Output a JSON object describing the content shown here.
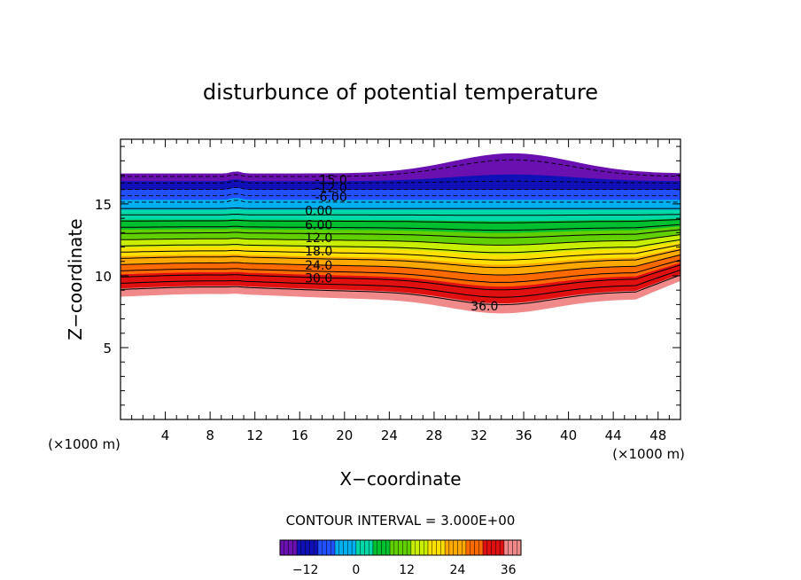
{
  "chart_data": {
    "type": "contour",
    "title": "disturbunce of potential temperature",
    "xlabel": "X−coordinate",
    "ylabel": "Z−coordinate",
    "x_unit_label": "(×1000 m)",
    "y_unit_label": "(×1000 m)",
    "xlim": [
      0,
      50
    ],
    "ylim": [
      0,
      19.5
    ],
    "x_ticks": [
      4,
      8,
      12,
      16,
      20,
      24,
      28,
      32,
      36,
      40,
      44,
      48
    ],
    "y_ticks": [
      5,
      10,
      15
    ],
    "contour_interval_label": "CONTOUR INTERVAL = 3.000E+00",
    "contour_interval": 3.0,
    "levels": [
      -15,
      -12,
      -9,
      -6,
      -3,
      0,
      3,
      6,
      9,
      12,
      15,
      18,
      21,
      24,
      27,
      30,
      33,
      36,
      39
    ],
    "contour_labels": [
      {
        "text": "-15.0",
        "x": 18.8,
        "z": 16.75
      },
      {
        "text": "-12.0",
        "x": 18.8,
        "z": 16.2
      },
      {
        "text": "-6.00",
        "x": 18.8,
        "z": 15.55
      },
      {
        "text": "0.00",
        "x": 17.7,
        "z": 14.6
      },
      {
        "text": "6.00",
        "x": 17.7,
        "z": 13.6
      },
      {
        "text": "12.0",
        "x": 17.7,
        "z": 12.7
      },
      {
        "text": "18.0",
        "x": 17.7,
        "z": 11.8
      },
      {
        "text": "24.0",
        "x": 17.7,
        "z": 10.8
      },
      {
        "text": "30.0",
        "x": 17.7,
        "z": 9.9
      },
      {
        "text": "36.0",
        "x": 32.5,
        "z": 7.95
      }
    ],
    "field_layers": [
      {
        "value": 38,
        "color": "#f08a8a",
        "bottom_z": 8.4,
        "top_z": 9.0
      },
      {
        "value": 34,
        "color": "#e01010",
        "bottom_z": 9.0,
        "top_z": 10.0
      },
      {
        "value": 28,
        "color": "#ff6a00",
        "bottom_z": 10.0,
        "top_z": 10.7
      },
      {
        "value": 24,
        "color": "#ffa800",
        "bottom_z": 10.7,
        "top_z": 11.3
      },
      {
        "value": 20,
        "color": "#ffe000",
        "bottom_z": 11.3,
        "top_z": 11.9
      },
      {
        "value": 17,
        "color": "#c8ee00",
        "bottom_z": 11.9,
        "top_z": 12.5
      },
      {
        "value": 12,
        "color": "#60d000",
        "bottom_z": 12.5,
        "top_z": 13.2
      },
      {
        "value": 7,
        "color": "#00c030",
        "bottom_z": 13.2,
        "top_z": 13.9
      },
      {
        "value": 2,
        "color": "#00d8a8",
        "bottom_z": 13.9,
        "top_z": 14.6
      },
      {
        "value": -4,
        "color": "#00b0f0",
        "bottom_z": 14.6,
        "top_z": 15.3
      },
      {
        "value": -9,
        "color": "#2050ff",
        "bottom_z": 15.3,
        "top_z": 16.0
      },
      {
        "value": -13,
        "color": "#1010b8",
        "bottom_z": 16.0,
        "top_z": 16.6
      },
      {
        "value": -17,
        "color": "#6a10b0",
        "bottom_z": 16.6,
        "top_z": 17.1
      }
    ],
    "colorbar": {
      "min": -18,
      "max": 39,
      "ticks": [
        -12,
        0,
        12,
        24,
        36
      ],
      "colors": [
        "#6a10b0",
        "#1010b8",
        "#2050ff",
        "#00b0f0",
        "#00d8a8",
        "#00c030",
        "#60d000",
        "#c8ee00",
        "#ffe000",
        "#ffa800",
        "#ff6a00",
        "#e01010",
        "#f08a8a"
      ]
    }
  }
}
